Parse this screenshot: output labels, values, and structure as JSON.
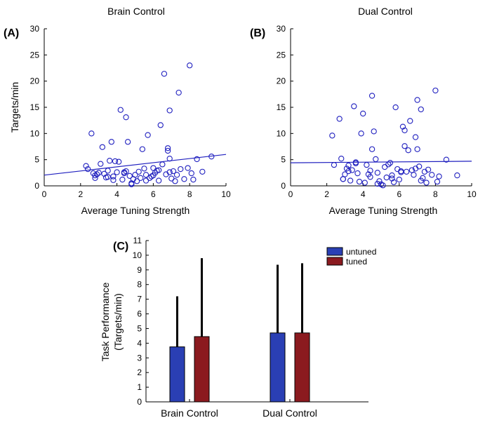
{
  "chart_data": [
    {
      "type": "scatter",
      "panel_label": "(A)",
      "title": "Brain Control",
      "xlabel": "Average Tuning Strength",
      "ylabel": "Targets/min",
      "xlim": [
        0,
        10
      ],
      "ylim": [
        0,
        30
      ],
      "xticks": [
        0,
        2,
        4,
        6,
        8,
        10
      ],
      "yticks": [
        0,
        5,
        10,
        15,
        20,
        25,
        30
      ],
      "marker_color": "#1f1fbf",
      "line_color": "#1f1fbf",
      "fit_line": [
        [
          0,
          2.05
        ],
        [
          10,
          6.0
        ]
      ],
      "points": [
        [
          2.3,
          3.8
        ],
        [
          2.4,
          3.2
        ],
        [
          2.6,
          10.0
        ],
        [
          2.7,
          2.4
        ],
        [
          2.8,
          1.5
        ],
        [
          2.9,
          2.2
        ],
        [
          3.1,
          4.2
        ],
        [
          3.2,
          7.4
        ],
        [
          3.3,
          2.3
        ],
        [
          3.4,
          1.6
        ],
        [
          3.5,
          2.9
        ],
        [
          3.6,
          4.8
        ],
        [
          3.7,
          8.4
        ],
        [
          3.8,
          1.8
        ],
        [
          3.8,
          1.1
        ],
        [
          3.9,
          4.7
        ],
        [
          4.0,
          2.6
        ],
        [
          4.1,
          4.6
        ],
        [
          4.2,
          14.5
        ],
        [
          4.3,
          1.2
        ],
        [
          4.4,
          2.4
        ],
        [
          4.5,
          13.1
        ],
        [
          4.5,
          2.8
        ],
        [
          4.6,
          8.4
        ],
        [
          4.7,
          1.9
        ],
        [
          4.8,
          0.3
        ],
        [
          4.9,
          1.3
        ],
        [
          5.0,
          2.1
        ],
        [
          5.1,
          0.9
        ],
        [
          5.2,
          2.7
        ],
        [
          5.3,
          1.5
        ],
        [
          5.4,
          7.0
        ],
        [
          5.5,
          3.3
        ],
        [
          5.6,
          2.1
        ],
        [
          5.7,
          9.7
        ],
        [
          5.8,
          1.5
        ],
        [
          5.9,
          1.8
        ],
        [
          6.0,
          3.4
        ],
        [
          6.1,
          2.5
        ],
        [
          6.2,
          2.9
        ],
        [
          6.3,
          1.0
        ],
        [
          6.4,
          11.6
        ],
        [
          6.5,
          4.1
        ],
        [
          6.6,
          21.4
        ],
        [
          6.7,
          2.2
        ],
        [
          6.8,
          6.7
        ],
        [
          6.9,
          14.4
        ],
        [
          6.9,
          5.2
        ],
        [
          7.0,
          1.4
        ],
        [
          7.1,
          2.8
        ],
        [
          7.2,
          0.9
        ],
        [
          7.3,
          2.1
        ],
        [
          7.4,
          17.8
        ],
        [
          7.5,
          3.2
        ],
        [
          7.7,
          1.3
        ],
        [
          7.9,
          3.4
        ],
        [
          8.0,
          23.0
        ],
        [
          8.1,
          2.4
        ],
        [
          8.2,
          1.2
        ],
        [
          8.4,
          5.1
        ],
        [
          8.7,
          2.7
        ],
        [
          9.2,
          5.6
        ],
        [
          2.8,
          2.0
        ],
        [
          3.5,
          1.7
        ],
        [
          4.4,
          2.6
        ],
        [
          5.6,
          1.0
        ],
        [
          6.3,
          3.0
        ],
        [
          6.8,
          7.2
        ],
        [
          4.8,
          0.5
        ],
        [
          6.0,
          2.0
        ],
        [
          6.9,
          2.6
        ],
        [
          3.0,
          2.5
        ]
      ]
    },
    {
      "type": "scatter",
      "panel_label": "(B)",
      "title": "Dual Control",
      "xlabel": "Average Tuning Strength",
      "ylabel": "",
      "xlim": [
        0,
        10
      ],
      "ylim": [
        0,
        30
      ],
      "xticks": [
        0,
        2,
        4,
        6,
        8,
        10
      ],
      "yticks": [
        0,
        5,
        10,
        15,
        20,
        25,
        30
      ],
      "marker_color": "#1f1fbf",
      "line_color": "#1f1fbf",
      "fit_line": [
        [
          0,
          4.4
        ],
        [
          10,
          4.7
        ]
      ],
      "points": [
        [
          2.3,
          9.6
        ],
        [
          2.4,
          4.0
        ],
        [
          2.7,
          12.8
        ],
        [
          2.8,
          5.2
        ],
        [
          2.9,
          1.3
        ],
        [
          3.0,
          2.2
        ],
        [
          3.1,
          3.3
        ],
        [
          3.2,
          2.8
        ],
        [
          3.3,
          1.0
        ],
        [
          3.4,
          3.0
        ],
        [
          3.5,
          15.2
        ],
        [
          3.6,
          4.5
        ],
        [
          3.7,
          2.4
        ],
        [
          3.8,
          0.8
        ],
        [
          3.9,
          10.0
        ],
        [
          4.0,
          13.8
        ],
        [
          4.1,
          0.6
        ],
        [
          4.2,
          4.0
        ],
        [
          4.3,
          2.2
        ],
        [
          4.4,
          1.7
        ],
        [
          4.5,
          7.0
        ],
        [
          4.5,
          17.2
        ],
        [
          4.6,
          10.4
        ],
        [
          4.7,
          5.1
        ],
        [
          4.8,
          2.5
        ],
        [
          4.9,
          0.9
        ],
        [
          5.0,
          0.3
        ],
        [
          5.1,
          0.1
        ],
        [
          5.2,
          3.6
        ],
        [
          5.3,
          1.6
        ],
        [
          5.4,
          4.1
        ],
        [
          5.5,
          4.4
        ],
        [
          5.6,
          2.0
        ],
        [
          5.7,
          0.7
        ],
        [
          5.8,
          15.0
        ],
        [
          5.9,
          3.2
        ],
        [
          6.0,
          1.2
        ],
        [
          6.1,
          2.6
        ],
        [
          6.2,
          11.3
        ],
        [
          6.3,
          7.6
        ],
        [
          6.3,
          10.6
        ],
        [
          6.4,
          2.7
        ],
        [
          6.5,
          6.8
        ],
        [
          6.6,
          12.4
        ],
        [
          6.7,
          3.0
        ],
        [
          6.8,
          2.1
        ],
        [
          6.9,
          9.3
        ],
        [
          7.0,
          16.4
        ],
        [
          7.0,
          7.0
        ],
        [
          7.1,
          3.7
        ],
        [
          7.2,
          14.6
        ],
        [
          7.3,
          1.5
        ],
        [
          7.4,
          2.7
        ],
        [
          7.5,
          0.6
        ],
        [
          7.6,
          3.1
        ],
        [
          7.8,
          2.1
        ],
        [
          8.0,
          18.2
        ],
        [
          8.1,
          0.8
        ],
        [
          8.2,
          1.8
        ],
        [
          8.6,
          5.0
        ],
        [
          9.2,
          2.0
        ],
        [
          3.2,
          3.9
        ],
        [
          4.8,
          0.4
        ],
        [
          6.1,
          2.8
        ],
        [
          7.2,
          1.0
        ],
        [
          5.6,
          1.4
        ],
        [
          3.6,
          4.3
        ],
        [
          6.9,
          3.3
        ],
        [
          2.9,
          1.3
        ],
        [
          4.4,
          2.9
        ]
      ]
    },
    {
      "type": "bar",
      "panel_label": "(C)",
      "title": "",
      "xlabel": "",
      "ylabel": "Task Performance\n(Targets/min)",
      "ylim": [
        0,
        11
      ],
      "yticks": [
        0,
        1,
        2,
        3,
        4,
        5,
        6,
        7,
        8,
        9,
        10,
        11
      ],
      "categories": [
        "Brain Control",
        "Dual Control"
      ],
      "series": [
        {
          "name": "untuned",
          "color": "#2a3fb4",
          "values": [
            3.75,
            4.7
          ],
          "error": [
            3.45,
            4.65
          ]
        },
        {
          "name": "tuned",
          "color": "#8b1a1f",
          "values": [
            4.45,
            4.7
          ],
          "error": [
            5.35,
            4.75
          ]
        }
      ],
      "legend_position": "top-right",
      "error_color": "#000000"
    }
  ]
}
